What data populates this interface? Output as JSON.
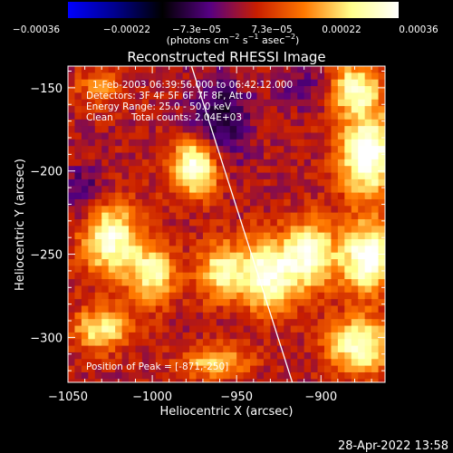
{
  "chart_data": {
    "type": "heatmap",
    "title": "Reconstructed RHESSI Image",
    "xlabel": "Heliocentric X (arcsec)",
    "ylabel": "Heliocentric Y (arcsec)",
    "xlim": [
      -1050,
      -862
    ],
    "ylim": [
      -327,
      -137
    ],
    "x_ticks": [
      -1050,
      -1000,
      -950,
      -900
    ],
    "x_tick_labels": [
      "−1050",
      "−1000",
      "−950",
      "−900"
    ],
    "y_ticks": [
      -150,
      -200,
      -250,
      -300
    ],
    "y_tick_labels": [
      "−150",
      "−200",
      "−250",
      "−300"
    ],
    "colorbar": {
      "range": [
        -0.00036,
        0.00036
      ],
      "tick_labels": [
        "−0.00036",
        "−0.00022",
        "−7.3e−05",
        "7.3e−05",
        "0.00022",
        "0.00036"
      ],
      "unit_parts": [
        "(photons cm",
        "−2",
        " s",
        "−1",
        " asec",
        "−2",
        ")"
      ],
      "colors": [
        "#0000ff",
        "#00008c",
        "#000000",
        "#560083",
        "#c81e00",
        "#ff7800",
        "#ffff8c",
        "#ffffff"
      ]
    },
    "limb_line": [
      [
        -978,
        -133
      ],
      [
        -917,
        -327
      ]
    ],
    "peak": [
      -871,
      -250
    ],
    "blobs": [
      {
        "x": -975,
        "y": -198,
        "amp": 0.00034,
        "sx": 10,
        "sy": 12
      },
      {
        "x": -1025,
        "y": -240,
        "amp": 0.0003,
        "sx": 12,
        "sy": 16
      },
      {
        "x": -1000,
        "y": -262,
        "amp": 0.00026,
        "sx": 10,
        "sy": 12
      },
      {
        "x": -960,
        "y": -260,
        "amp": 0.00024,
        "sx": 9,
        "sy": 12
      },
      {
        "x": -932,
        "y": -262,
        "amp": 0.00033,
        "sx": 12,
        "sy": 15
      },
      {
        "x": -906,
        "y": -250,
        "amp": 0.0003,
        "sx": 10,
        "sy": 14
      },
      {
        "x": -872,
        "y": -190,
        "amp": 0.00036,
        "sx": 12,
        "sy": 18
      },
      {
        "x": -880,
        "y": -150,
        "amp": 0.00028,
        "sx": 10,
        "sy": 10
      },
      {
        "x": -872,
        "y": -252,
        "amp": 0.00036,
        "sx": 11,
        "sy": 14
      },
      {
        "x": -877,
        "y": -305,
        "amp": 0.0003,
        "sx": 13,
        "sy": 12
      },
      {
        "x": -1030,
        "y": -295,
        "amp": 0.00024,
        "sx": 12,
        "sy": 9
      },
      {
        "x": -963,
        "y": -315,
        "amp": 0.0002,
        "sx": 14,
        "sy": 7
      },
      {
        "x": -1032,
        "y": -150,
        "amp": 0.00012,
        "sx": 10,
        "sy": 8
      },
      {
        "x": -1040,
        "y": -215,
        "amp": -0.00012,
        "sx": 10,
        "sy": 12
      },
      {
        "x": -960,
        "y": -170,
        "amp": -0.00016,
        "sx": 12,
        "sy": 18
      },
      {
        "x": -910,
        "y": -150,
        "amp": -8e-05,
        "sx": 12,
        "sy": 8
      }
    ]
  },
  "annotations": {
    "time": "1-Feb-2003 06:39:56.000 to 06:42:12.000",
    "detectors": "Detectors: 3F 4F 5F 6F 7F 8F, Att 0",
    "energy": "Energy Range: 25.0 - 50.0 keV",
    "clean": "Clean",
    "counts": "Total counts: 2.04E+03",
    "peak": "Position of Peak = [-871,-250]"
  },
  "footer": {
    "date": "28-Apr-2022 13:58"
  }
}
